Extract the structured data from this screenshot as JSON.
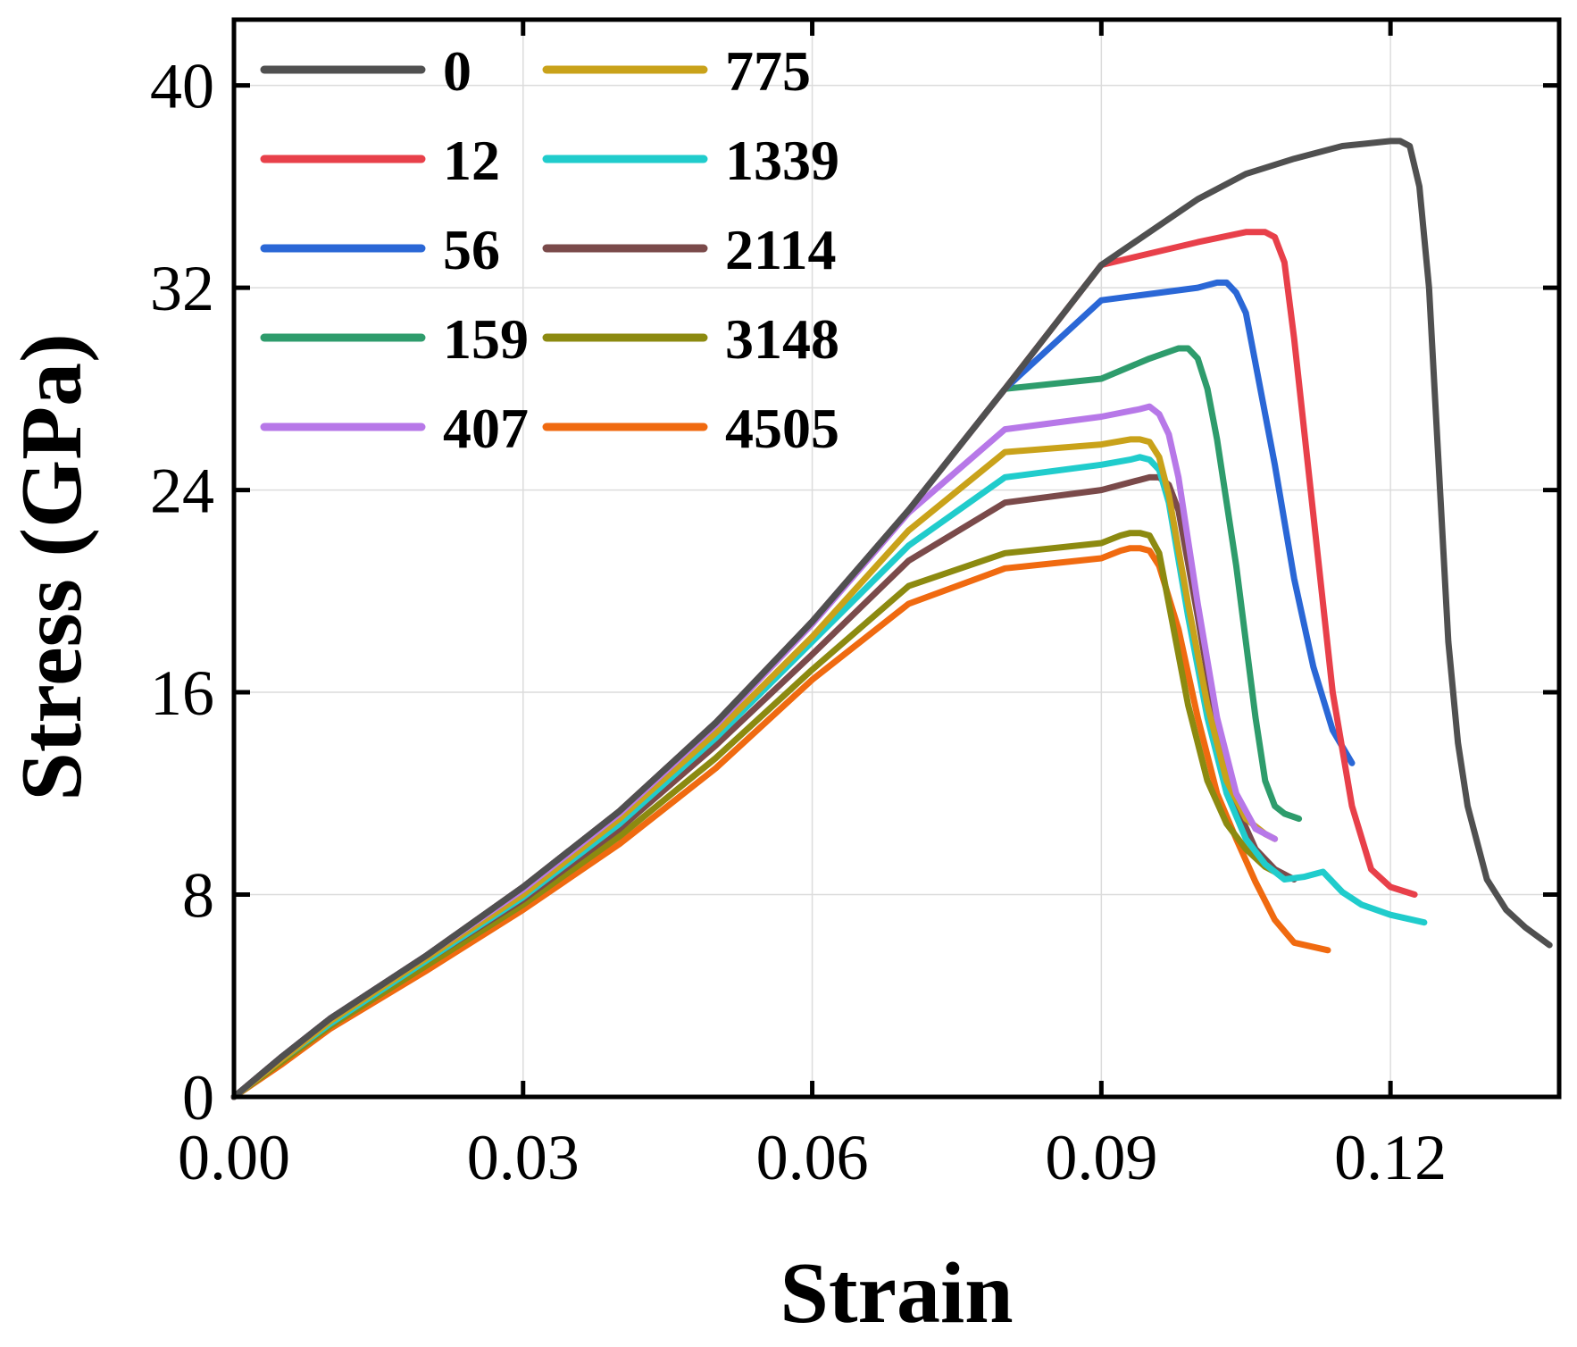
{
  "chart_data": {
    "type": "line",
    "title": "",
    "xlabel": "Strain",
    "ylabel": "Stress (GPa)",
    "xlim": [
      0,
      0.1375
    ],
    "ylim": [
      0,
      42.6
    ],
    "xticks": [
      0.0,
      0.03,
      0.06,
      0.09,
      0.12
    ],
    "xtick_labels": [
      "0.00",
      "0.03",
      "0.06",
      "0.09",
      "0.12"
    ],
    "yticks": [
      0,
      8,
      16,
      24,
      32,
      40
    ],
    "ytick_labels": [
      "0",
      "8",
      "16",
      "24",
      "32",
      "40"
    ],
    "grid": true,
    "legend_position": "top-left",
    "series": [
      {
        "name": "0",
        "color": "#505050",
        "x": [
          0,
          0.005,
          0.01,
          0.02,
          0.03,
          0.04,
          0.05,
          0.06,
          0.07,
          0.08,
          0.09,
          0.1,
          0.105,
          0.11,
          0.115,
          0.12,
          0.121,
          0.122,
          0.123,
          0.124,
          0.125,
          0.126,
          0.127,
          0.128,
          0.13,
          0.132,
          0.134,
          0.1365
        ],
        "y": [
          0,
          1.6,
          3.1,
          5.6,
          8.3,
          11.3,
          14.8,
          18.8,
          23.2,
          28,
          32.9,
          35.5,
          36.5,
          37.1,
          37.6,
          37.8,
          37.8,
          37.6,
          36,
          32,
          25,
          18,
          14,
          11.5,
          8.6,
          7.4,
          6.7,
          6.0
        ]
      },
      {
        "name": "12",
        "color": "#e8404a",
        "x": [
          0,
          0.005,
          0.01,
          0.02,
          0.03,
          0.04,
          0.05,
          0.06,
          0.07,
          0.08,
          0.09,
          0.1,
          0.105,
          0.107,
          0.108,
          0.109,
          0.11,
          0.112,
          0.114,
          0.116,
          0.118,
          0.12,
          0.1225
        ],
        "y": [
          0,
          1.6,
          3.1,
          5.6,
          8.3,
          11.3,
          14.8,
          18.8,
          23.2,
          28,
          32.9,
          33.8,
          34.2,
          34.2,
          34,
          33,
          30,
          23,
          16,
          11.5,
          9,
          8.3,
          8.0
        ]
      },
      {
        "name": "56",
        "color": "#2a67d6",
        "x": [
          0,
          0.005,
          0.01,
          0.02,
          0.03,
          0.04,
          0.05,
          0.06,
          0.07,
          0.08,
          0.09,
          0.1,
          0.102,
          0.103,
          0.104,
          0.105,
          0.106,
          0.108,
          0.11,
          0.112,
          0.114,
          0.116
        ],
        "y": [
          0,
          1.6,
          3.1,
          5.6,
          8.3,
          11.3,
          14.8,
          18.8,
          23.2,
          28,
          31.5,
          32.0,
          32.2,
          32.2,
          31.8,
          31,
          29,
          25,
          20.5,
          17,
          14.5,
          13.2
        ]
      },
      {
        "name": "159",
        "color": "#2e9c6c",
        "x": [
          0,
          0.005,
          0.01,
          0.02,
          0.03,
          0.04,
          0.05,
          0.06,
          0.07,
          0.08,
          0.09,
          0.095,
          0.098,
          0.099,
          0.1,
          0.101,
          0.102,
          0.104,
          0.106,
          0.107,
          0.108,
          0.109,
          0.1105
        ],
        "y": [
          0,
          1.6,
          3.1,
          5.6,
          8.3,
          11.3,
          14.8,
          18.8,
          23.2,
          28,
          28.4,
          29.2,
          29.6,
          29.6,
          29.2,
          28,
          26,
          21,
          15,
          12.5,
          11.5,
          11.2,
          11.0
        ]
      },
      {
        "name": "407",
        "color": "#b778e8",
        "x": [
          0,
          0.005,
          0.01,
          0.02,
          0.03,
          0.04,
          0.05,
          0.06,
          0.07,
          0.08,
          0.09,
          0.094,
          0.095,
          0.096,
          0.097,
          0.098,
          0.1,
          0.102,
          0.104,
          0.106,
          0.108
        ],
        "y": [
          0,
          1.6,
          3.1,
          5.6,
          8.2,
          11.2,
          14.7,
          18.7,
          23.1,
          26.4,
          26.9,
          27.2,
          27.3,
          27.0,
          26.2,
          24.5,
          19.5,
          15,
          12,
          10.6,
          10.2
        ]
      },
      {
        "name": "775",
        "color": "#c9a21a",
        "x": [
          0,
          0.005,
          0.01,
          0.02,
          0.03,
          0.04,
          0.05,
          0.06,
          0.07,
          0.08,
          0.09,
          0.093,
          0.094,
          0.095,
          0.096,
          0.097,
          0.099,
          0.101,
          0.103,
          0.105,
          0.107,
          0.108
        ],
        "y": [
          0,
          1.5,
          3.0,
          5.5,
          8.0,
          11.0,
          14.4,
          18.2,
          22.4,
          25.5,
          25.8,
          26.0,
          26.0,
          25.9,
          25.3,
          23.8,
          19.5,
          15.5,
          12.5,
          11,
          10.4,
          10.2
        ]
      },
      {
        "name": "1339",
        "color": "#20cccc",
        "x": [
          0,
          0.005,
          0.01,
          0.02,
          0.03,
          0.04,
          0.05,
          0.06,
          0.07,
          0.08,
          0.09,
          0.093,
          0.094,
          0.095,
          0.096,
          0.097,
          0.099,
          0.101,
          0.103,
          0.105,
          0.107,
          0.109,
          0.111,
          0.113,
          0.115,
          0.117,
          0.12,
          0.1235
        ],
        "y": [
          0,
          1.5,
          2.9,
          5.4,
          7.9,
          10.8,
          14.2,
          18.0,
          21.8,
          24.5,
          25.0,
          25.2,
          25.3,
          25.2,
          24.8,
          23.5,
          19,
          15,
          12,
          10.2,
          9.2,
          8.6,
          8.7,
          8.9,
          8.1,
          7.6,
          7.2,
          6.9
        ]
      },
      {
        "name": "2114",
        "color": "#7a4a4a",
        "x": [
          0,
          0.005,
          0.01,
          0.02,
          0.03,
          0.04,
          0.05,
          0.06,
          0.07,
          0.08,
          0.09,
          0.094,
          0.095,
          0.096,
          0.097,
          0.098,
          0.1,
          0.102,
          0.104,
          0.106,
          0.108,
          0.11
        ],
        "y": [
          0,
          1.5,
          2.9,
          5.4,
          7.8,
          10.6,
          13.9,
          17.5,
          21.2,
          23.5,
          24.0,
          24.4,
          24.5,
          24.5,
          24.2,
          23.2,
          19,
          14.5,
          11.5,
          9.8,
          9.0,
          8.6
        ]
      },
      {
        "name": "3148",
        "color": "#8c8a10",
        "x": [
          0,
          0.005,
          0.01,
          0.02,
          0.03,
          0.04,
          0.05,
          0.06,
          0.07,
          0.08,
          0.09,
          0.092,
          0.093,
          0.094,
          0.095,
          0.096,
          0.097,
          0.099,
          0.101,
          0.103,
          0.105,
          0.107,
          0.109
        ],
        "y": [
          0,
          1.4,
          2.8,
          5.2,
          7.6,
          10.3,
          13.4,
          16.9,
          20.2,
          21.5,
          21.9,
          22.2,
          22.3,
          22.3,
          22.2,
          21.5,
          19.5,
          15.5,
          12.5,
          10.8,
          9.8,
          9.1,
          8.7
        ]
      },
      {
        "name": "4505",
        "color": "#f06a10",
        "x": [
          0,
          0.005,
          0.01,
          0.02,
          0.03,
          0.04,
          0.05,
          0.06,
          0.07,
          0.08,
          0.09,
          0.092,
          0.093,
          0.094,
          0.095,
          0.096,
          0.098,
          0.1,
          0.102,
          0.104,
          0.106,
          0.108,
          0.11,
          0.1135
        ],
        "y": [
          0,
          1.3,
          2.7,
          5.0,
          7.4,
          10.0,
          13.0,
          16.5,
          19.5,
          20.9,
          21.3,
          21.6,
          21.7,
          21.7,
          21.6,
          21.0,
          18.5,
          15,
          12,
          10.2,
          8.5,
          7.0,
          6.1,
          5.8
        ]
      }
    ]
  }
}
